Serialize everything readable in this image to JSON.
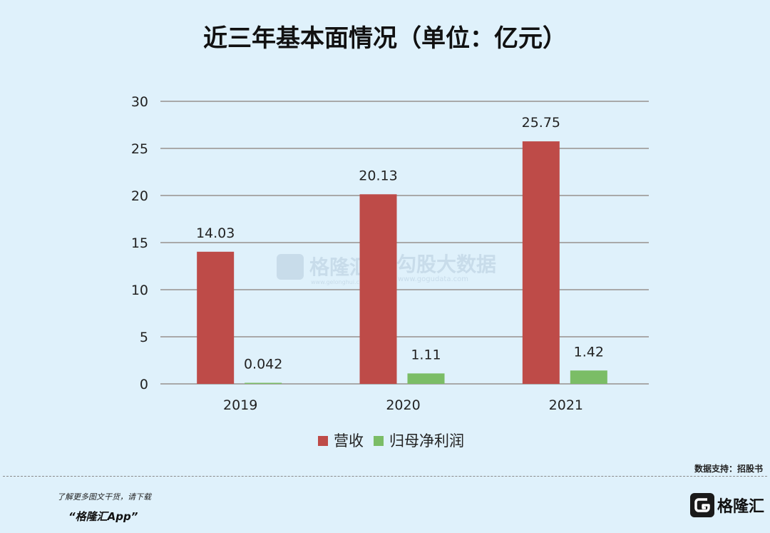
{
  "title": "近三年基本面情况（单位：亿元）",
  "chart_data": {
    "type": "bar",
    "categories": [
      "2019",
      "2020",
      "2021"
    ],
    "series": [
      {
        "name": "营收",
        "values": [
          14.03,
          20.13,
          25.75
        ],
        "labels": [
          "14.03",
          "20.13",
          "25.75"
        ],
        "color": "#be4b48"
      },
      {
        "name": "归母净利润",
        "values": [
          0.042,
          1.11,
          1.42
        ],
        "labels": [
          "0.042",
          "1.11",
          "1.42"
        ],
        "color": "#7bbd66"
      }
    ],
    "ylim": [
      0,
      30
    ],
    "yticks": [
      0,
      5,
      10,
      15,
      20,
      25,
      30
    ],
    "grid": true,
    "legend": "bottom"
  },
  "watermark": {
    "brand_cn": "格隆汇",
    "brand_url": "www.gelonghui.com",
    "partner_cn": "勾股大数据",
    "partner_url": "www.gogudata.com"
  },
  "source_text": "数据支持：招股书",
  "footer": {
    "line1": "了解更多图文干货，请下载",
    "line2": "“格隆汇App”",
    "brand": "格隆汇"
  },
  "colors": {
    "background": "#dff1fb",
    "grid": "#a9a9a9",
    "watermark": "#c8dcea"
  }
}
